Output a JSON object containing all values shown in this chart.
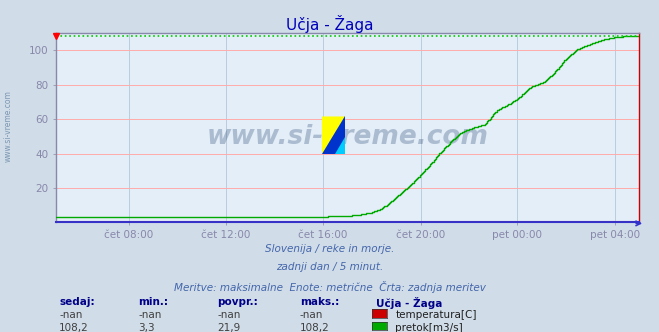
{
  "title": "Učja - Žaga",
  "bg_color": "#d0dce8",
  "plot_bg_color": "#e4eef8",
  "grid_h_color": "#ffaaaa",
  "grid_v_color": "#b8ccdc",
  "ylim": [
    0,
    110
  ],
  "yticks": [
    20,
    40,
    60,
    80,
    100
  ],
  "x_tick_labels": [
    "čet 08:00",
    "čet 12:00",
    "čet 16:00",
    "čet 20:00",
    "pet 00:00",
    "pet 04:00"
  ],
  "x_tick_positions": [
    0.125,
    0.291,
    0.458,
    0.625,
    0.791,
    0.958
  ],
  "max_line_value": 108.2,
  "max_line_color": "#00cc00",
  "temp_color": "#cc0000",
  "flow_color": "#00aa00",
  "title_color": "#0000bb",
  "xlabel_color": "#3344bb",
  "ylabel_color": "#4444aa",
  "subtitle_color": "#4466aa",
  "watermark": "www.si-vreme.com",
  "watermark_color": "#1a3a6a",
  "watermark_alpha": 0.28,
  "legend_title": "Učja - Žaga",
  "legend_title_color": "#000088",
  "legend_items": [
    {
      "label": "temperatura[C]",
      "color": "#cc0000"
    },
    {
      "label": "pretok[m3/s]",
      "color": "#00aa00"
    }
  ],
  "subtitle_lines": [
    "Slovenija / reke in morje.",
    "zadnji dan / 5 minut.",
    "Meritve: maksimalne  Enote: metrične  Črta: zadnja meritev"
  ],
  "stats_headers": [
    "sedaj:",
    "min.:",
    "povpr.:",
    "maks.:"
  ],
  "stats_temp": [
    "-nan",
    "-nan",
    "-nan",
    "-nan"
  ],
  "stats_flow": [
    "108,2",
    "3,3",
    "21,9",
    "108,2"
  ],
  "axis_bottom_color": "#3333cc",
  "axis_spine_color": "#8888aa",
  "axis_right_color": "#cc0000",
  "side_label": "www.si-vreme.com",
  "side_label_color": "#6080a0",
  "flow_x": [
    0.0,
    0.1,
    0.2,
    0.3,
    0.4,
    0.46,
    0.5,
    0.52,
    0.54,
    0.555,
    0.565,
    0.575,
    0.585,
    0.595,
    0.608,
    0.618,
    0.628,
    0.638,
    0.648,
    0.658,
    0.668,
    0.678,
    0.695,
    0.715,
    0.735,
    0.755,
    0.775,
    0.795,
    0.815,
    0.835,
    0.855,
    0.875,
    0.895,
    0.915,
    0.935,
    0.955,
    0.975,
    1.0
  ],
  "flow_y": [
    3.3,
    3.3,
    3.3,
    3.3,
    3.3,
    3.4,
    3.8,
    4.5,
    5.8,
    7.5,
    9.8,
    12.5,
    15.5,
    18.5,
    22.0,
    25.5,
    29.0,
    32.5,
    36.5,
    40.5,
    44.0,
    47.5,
    52.5,
    55.0,
    57.0,
    65.0,
    68.5,
    73.0,
    79.0,
    81.5,
    87.5,
    95.5,
    101.0,
    103.5,
    106.0,
    107.5,
    108.2,
    108.2
  ],
  "fig_width": 6.59,
  "fig_height": 3.32,
  "fig_dpi": 100
}
